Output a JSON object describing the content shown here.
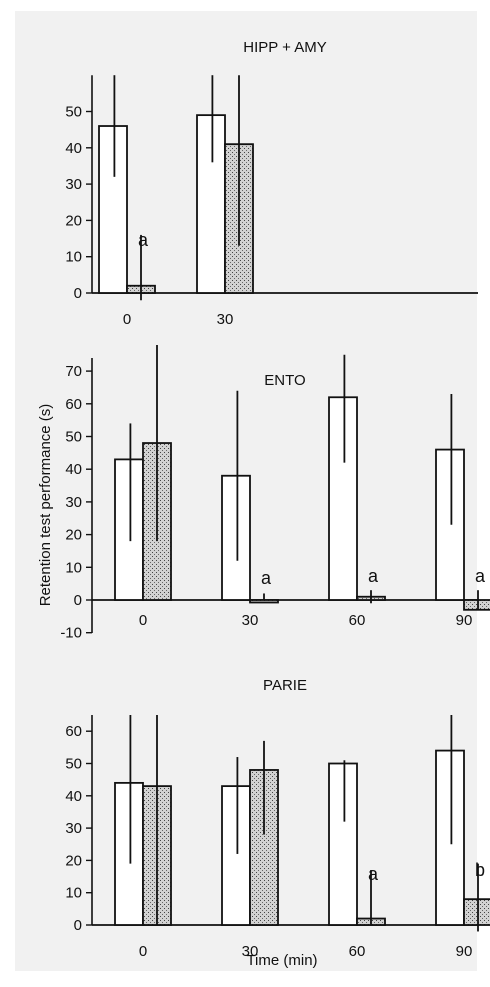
{
  "figure": {
    "ylabel": "Retention test performance (s)",
    "xlabel": "Time (min)"
  },
  "chart_data": [
    {
      "type": "bar",
      "title": "HIPP + AMY",
      "categories": [
        "0",
        "30"
      ],
      "yticks": [
        0,
        10,
        20,
        30,
        40,
        50
      ],
      "ylim": [
        0,
        60
      ],
      "series": [
        {
          "pattern": "open",
          "values": [
            46,
            49
          ],
          "error_low": [
            32,
            36
          ],
          "error_high": [
            60,
            60
          ]
        },
        {
          "pattern": "stippled",
          "values": [
            2,
            41
          ],
          "error_low": [
            -2,
            13
          ],
          "error_high": [
            16,
            60
          ]
        }
      ],
      "annotations": [
        {
          "category": 0,
          "text": "a"
        },
        {
          "category": 1,
          "text": ""
        }
      ]
    },
    {
      "type": "bar",
      "title": "ENTO",
      "categories": [
        "0",
        "30",
        "60",
        "90"
      ],
      "yticks": [
        -10,
        0,
        10,
        20,
        30,
        40,
        50,
        60,
        70
      ],
      "ylim": [
        -10,
        74
      ],
      "series": [
        {
          "pattern": "open",
          "values": [
            43,
            38,
            62,
            46
          ],
          "error_low": [
            18,
            12,
            42,
            23
          ],
          "error_high": [
            54,
            64,
            75,
            63
          ]
        },
        {
          "pattern": "stippled",
          "values": [
            48,
            0,
            1,
            -3
          ],
          "error_low": [
            18,
            0,
            -1,
            -3
          ],
          "error_high": [
            78,
            2,
            3,
            3
          ]
        }
      ],
      "annotations": [
        {
          "category": 0,
          "text": ""
        },
        {
          "category": 1,
          "text": "a"
        },
        {
          "category": 2,
          "text": "a"
        },
        {
          "category": 3,
          "text": "a"
        }
      ]
    },
    {
      "type": "bar",
      "title": "PARIE",
      "categories": [
        "0",
        "30",
        "60",
        "90"
      ],
      "yticks": [
        0,
        10,
        20,
        30,
        40,
        50,
        60
      ],
      "ylim": [
        0,
        65
      ],
      "series": [
        {
          "pattern": "open",
          "values": [
            44,
            43,
            50,
            54
          ],
          "error_low": [
            19,
            22,
            32,
            25
          ],
          "error_high": [
            65,
            52,
            51,
            65
          ]
        },
        {
          "pattern": "stippled",
          "values": [
            43,
            48,
            2,
            8
          ],
          "error_low": [
            0,
            28,
            0,
            -2
          ],
          "error_high": [
            65,
            57,
            17,
            19
          ]
        }
      ],
      "annotations": [
        {
          "category": 0,
          "text": ""
        },
        {
          "category": 1,
          "text": ""
        },
        {
          "category": 2,
          "text": "a"
        },
        {
          "category": 3,
          "text": "b"
        }
      ]
    }
  ]
}
